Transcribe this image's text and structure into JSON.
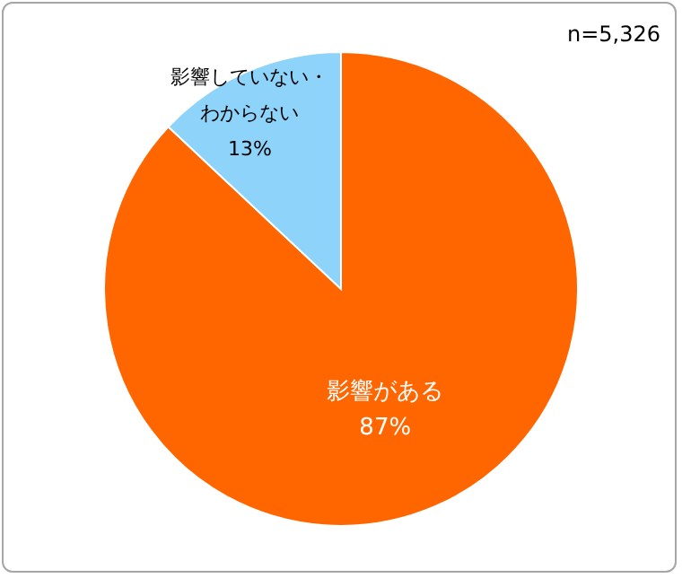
{
  "chart_data": {
    "type": "pie",
    "categories": [
      "影響がある",
      "影響していない・わからない"
    ],
    "values": [
      87,
      13
    ],
    "colors": [
      "#ff6600",
      "#8dd3fa"
    ],
    "value_labels": [
      "87%",
      "13%"
    ],
    "annotations": [
      "n=5,326"
    ]
  }
}
